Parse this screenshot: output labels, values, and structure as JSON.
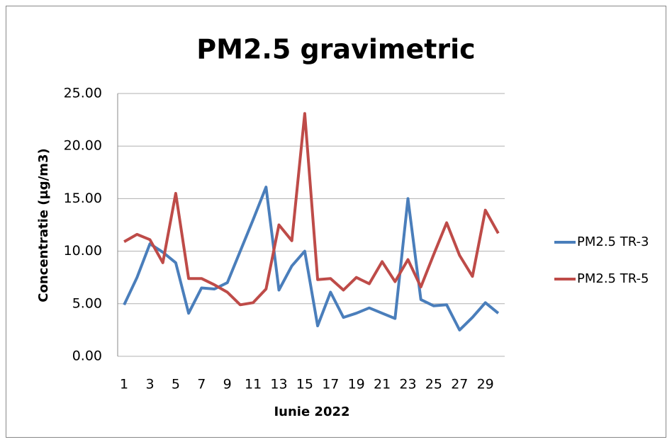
{
  "chart_data": {
    "type": "line",
    "title": "PM2.5 gravimetric",
    "x_label": "Iunie 2022",
    "y_label": "Concentratie (µg/m3)",
    "categories": [
      1,
      null,
      3,
      null,
      5,
      null,
      7,
      null,
      9,
      null,
      11,
      null,
      13,
      null,
      15,
      null,
      17,
      null,
      19,
      null,
      21,
      null,
      23,
      null,
      25,
      null,
      27,
      null,
      29,
      null
    ],
    "series": [
      {
        "name": "PM2.5 TR-3",
        "color": "#4a7ebb",
        "values": [
          4.9,
          7.5,
          10.7,
          9.9,
          8.9,
          4.1,
          6.5,
          6.4,
          7.0,
          10.0,
          13.0,
          16.1,
          6.3,
          8.6,
          10.0,
          2.9,
          6.1,
          3.7,
          4.1,
          4.6,
          4.1,
          3.6,
          15.0,
          5.4,
          4.8,
          4.9,
          2.5,
          3.7,
          5.1,
          4.1
        ]
      },
      {
        "name": "PM2.5 TR-5",
        "color": "#be4b48",
        "values": [
          10.9,
          11.6,
          11.1,
          8.9,
          15.5,
          7.4,
          7.4,
          6.8,
          6.1,
          4.9,
          5.1,
          6.4,
          12.5,
          11.0,
          23.1,
          7.3,
          7.4,
          6.3,
          7.5,
          6.9,
          9.0,
          7.1,
          9.2,
          6.6,
          9.7,
          12.7,
          9.6,
          7.6,
          13.9,
          11.7
        ]
      }
    ],
    "ylim": [
      0,
      25
    ],
    "yticks": [
      {
        "value": 0,
        "label": "0.00"
      },
      {
        "value": 5,
        "label": "5.00"
      },
      {
        "value": 10,
        "label": "10.00"
      },
      {
        "value": 15,
        "label": "15.00"
      },
      {
        "value": 20,
        "label": "20.00"
      },
      {
        "value": 25,
        "label": "25.00"
      }
    ],
    "grid": true,
    "legend": "right"
  }
}
